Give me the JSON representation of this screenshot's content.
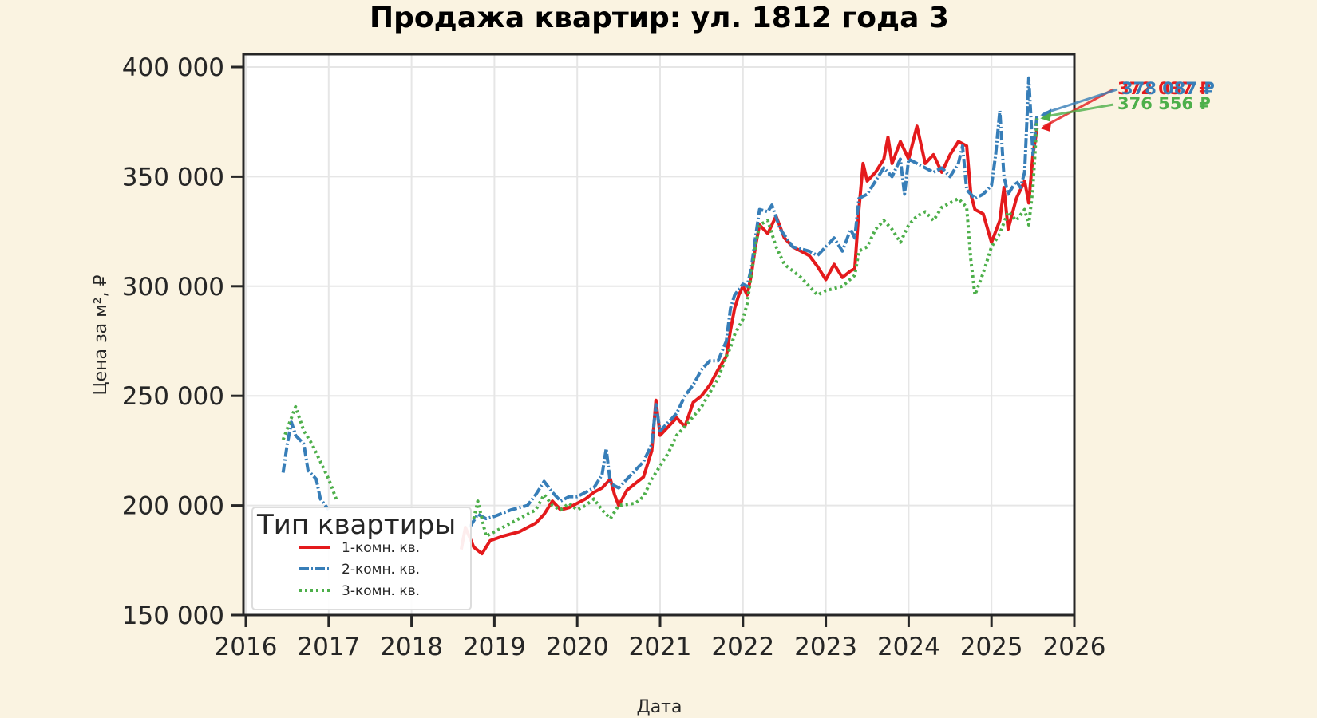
{
  "chart_data": {
    "type": "line",
    "title": "Продажа квартир: ул. 1812 года 3",
    "xlabel": "Дата",
    "ylabel": "Цена за м², ₽",
    "xlim": [
      2016,
      2026
    ],
    "ylim": [
      150000,
      400000
    ],
    "x_ticks": [
      "2016",
      "2017",
      "2018",
      "2019",
      "2020",
      "2021",
      "2022",
      "2023",
      "2024",
      "2025",
      "2026"
    ],
    "y_ticks": [
      "150 000",
      "200 000",
      "250 000",
      "300 000",
      "350 000",
      "400 000"
    ],
    "grid": true,
    "legend": {
      "title": "Тип квартиры",
      "position": "lower left"
    },
    "series": [
      {
        "name": "1-комн. кв.",
        "color": "#e41a1c",
        "style": "solid",
        "end_label": "372 037 ₽",
        "points": [
          [
            2018.6,
            180000
          ],
          [
            2018.65,
            190000
          ],
          [
            2018.75,
            181000
          ],
          [
            2018.85,
            178000
          ],
          [
            2018.95,
            184000
          ],
          [
            2019.1,
            186000
          ],
          [
            2019.3,
            188000
          ],
          [
            2019.4,
            190000
          ],
          [
            2019.5,
            192000
          ],
          [
            2019.6,
            196000
          ],
          [
            2019.7,
            202000
          ],
          [
            2019.8,
            198000
          ],
          [
            2019.9,
            199000
          ],
          [
            2020.0,
            201000
          ],
          [
            2020.1,
            203000
          ],
          [
            2020.2,
            206000
          ],
          [
            2020.3,
            208000
          ],
          [
            2020.4,
            212000
          ],
          [
            2020.45,
            205000
          ],
          [
            2020.5,
            200000
          ],
          [
            2020.6,
            207000
          ],
          [
            2020.7,
            210000
          ],
          [
            2020.8,
            213000
          ],
          [
            2020.9,
            225000
          ],
          [
            2020.95,
            248000
          ],
          [
            2021.0,
            232000
          ],
          [
            2021.1,
            236000
          ],
          [
            2021.2,
            240000
          ],
          [
            2021.3,
            236000
          ],
          [
            2021.4,
            247000
          ],
          [
            2021.5,
            250000
          ],
          [
            2021.6,
            255000
          ],
          [
            2021.7,
            262000
          ],
          [
            2021.8,
            268000
          ],
          [
            2021.85,
            280000
          ],
          [
            2021.9,
            290000
          ],
          [
            2021.95,
            296000
          ],
          [
            2022.0,
            300000
          ],
          [
            2022.05,
            296000
          ],
          [
            2022.1,
            305000
          ],
          [
            2022.15,
            318000
          ],
          [
            2022.2,
            328000
          ],
          [
            2022.3,
            324000
          ],
          [
            2022.4,
            332000
          ],
          [
            2022.5,
            322000
          ],
          [
            2022.6,
            318000
          ],
          [
            2022.7,
            316000
          ],
          [
            2022.8,
            314000
          ],
          [
            2022.9,
            309000
          ],
          [
            2023.0,
            303000
          ],
          [
            2023.1,
            310000
          ],
          [
            2023.2,
            304000
          ],
          [
            2023.3,
            307000
          ],
          [
            2023.35,
            308000
          ],
          [
            2023.4,
            335000
          ],
          [
            2023.45,
            356000
          ],
          [
            2023.5,
            348000
          ],
          [
            2023.6,
            352000
          ],
          [
            2023.7,
            358000
          ],
          [
            2023.75,
            368000
          ],
          [
            2023.8,
            356000
          ],
          [
            2023.9,
            366000
          ],
          [
            2024.0,
            358000
          ],
          [
            2024.1,
            373000
          ],
          [
            2024.2,
            356000
          ],
          [
            2024.3,
            360000
          ],
          [
            2024.4,
            352000
          ],
          [
            2024.5,
            360000
          ],
          [
            2024.6,
            366000
          ],
          [
            2024.7,
            364000
          ],
          [
            2024.75,
            342000
          ],
          [
            2024.8,
            335000
          ],
          [
            2024.9,
            333000
          ],
          [
            2025.0,
            320000
          ],
          [
            2025.1,
            330000
          ],
          [
            2025.15,
            345000
          ],
          [
            2025.2,
            326000
          ],
          [
            2025.3,
            340000
          ],
          [
            2025.4,
            348000
          ],
          [
            2025.45,
            338000
          ],
          [
            2025.5,
            360000
          ],
          [
            2025.55,
            372037
          ]
        ]
      },
      {
        "name": "2-комн. кв.",
        "color": "#377eb8",
        "style": "dashdot",
        "end_label": "378 087 ₽",
        "points": [
          [
            2016.45,
            215000
          ],
          [
            2016.5,
            228000
          ],
          [
            2016.55,
            238000
          ],
          [
            2016.6,
            232000
          ],
          [
            2016.7,
            228000
          ],
          [
            2016.75,
            216000
          ],
          [
            2016.85,
            212000
          ],
          [
            2016.9,
            203000
          ],
          [
            2017.0,
            198000
          ],
          [
            2018.7,
            190000
          ],
          [
            2018.8,
            196000
          ],
          [
            2018.9,
            194000
          ],
          [
            2019.0,
            195000
          ],
          [
            2019.2,
            198000
          ],
          [
            2019.4,
            200000
          ],
          [
            2019.5,
            205000
          ],
          [
            2019.6,
            211000
          ],
          [
            2019.7,
            206000
          ],
          [
            2019.8,
            202000
          ],
          [
            2019.9,
            204000
          ],
          [
            2020.0,
            204000
          ],
          [
            2020.1,
            206000
          ],
          [
            2020.2,
            208000
          ],
          [
            2020.3,
            214000
          ],
          [
            2020.35,
            226000
          ],
          [
            2020.4,
            210000
          ],
          [
            2020.5,
            208000
          ],
          [
            2020.6,
            212000
          ],
          [
            2020.7,
            216000
          ],
          [
            2020.8,
            220000
          ],
          [
            2020.9,
            228000
          ],
          [
            2020.95,
            246000
          ],
          [
            2021.0,
            234000
          ],
          [
            2021.1,
            238000
          ],
          [
            2021.2,
            242000
          ],
          [
            2021.3,
            250000
          ],
          [
            2021.4,
            255000
          ],
          [
            2021.5,
            262000
          ],
          [
            2021.6,
            266000
          ],
          [
            2021.7,
            266000
          ],
          [
            2021.8,
            275000
          ],
          [
            2021.85,
            290000
          ],
          [
            2021.9,
            296000
          ],
          [
            2022.0,
            301000
          ],
          [
            2022.05,
            300000
          ],
          [
            2022.1,
            308000
          ],
          [
            2022.15,
            322000
          ],
          [
            2022.2,
            335000
          ],
          [
            2022.3,
            334000
          ],
          [
            2022.35,
            337000
          ],
          [
            2022.45,
            326000
          ],
          [
            2022.6,
            318000
          ],
          [
            2022.8,
            316000
          ],
          [
            2022.9,
            314000
          ],
          [
            2023.0,
            318000
          ],
          [
            2023.1,
            322000
          ],
          [
            2023.2,
            316000
          ],
          [
            2023.3,
            326000
          ],
          [
            2023.35,
            322000
          ],
          [
            2023.4,
            340000
          ],
          [
            2023.5,
            342000
          ],
          [
            2023.6,
            348000
          ],
          [
            2023.7,
            354000
          ],
          [
            2023.8,
            350000
          ],
          [
            2023.9,
            358000
          ],
          [
            2023.95,
            342000
          ],
          [
            2024.0,
            358000
          ],
          [
            2024.1,
            356000
          ],
          [
            2024.2,
            354000
          ],
          [
            2024.3,
            352000
          ],
          [
            2024.4,
            354000
          ],
          [
            2024.5,
            350000
          ],
          [
            2024.6,
            356000
          ],
          [
            2024.65,
            364000
          ],
          [
            2024.7,
            344000
          ],
          [
            2024.8,
            340000
          ],
          [
            2024.9,
            342000
          ],
          [
            2025.0,
            346000
          ],
          [
            2025.05,
            360000
          ],
          [
            2025.1,
            380000
          ],
          [
            2025.15,
            350000
          ],
          [
            2025.2,
            342000
          ],
          [
            2025.3,
            348000
          ],
          [
            2025.35,
            345000
          ],
          [
            2025.4,
            352000
          ],
          [
            2025.45,
            395000
          ],
          [
            2025.5,
            360000
          ],
          [
            2025.55,
            378087
          ]
        ]
      },
      {
        "name": "3-комн. кв.",
        "color": "#4daf4a",
        "style": "dotted",
        "end_label": "376 556 ₽",
        "points": [
          [
            2016.45,
            230000
          ],
          [
            2016.55,
            240000
          ],
          [
            2016.6,
            245000
          ],
          [
            2016.7,
            234000
          ],
          [
            2016.8,
            228000
          ],
          [
            2016.9,
            220000
          ],
          [
            2017.0,
            212000
          ],
          [
            2017.1,
            202000
          ],
          [
            2018.75,
            194000
          ],
          [
            2018.8,
            202000
          ],
          [
            2018.9,
            186000
          ],
          [
            2019.0,
            188000
          ],
          [
            2019.2,
            192000
          ],
          [
            2019.4,
            196000
          ],
          [
            2019.5,
            198000
          ],
          [
            2019.6,
            205000
          ],
          [
            2019.7,
            200000
          ],
          [
            2019.8,
            198000
          ],
          [
            2019.9,
            201000
          ],
          [
            2020.0,
            198000
          ],
          [
            2020.1,
            200000
          ],
          [
            2020.2,
            203000
          ],
          [
            2020.3,
            198000
          ],
          [
            2020.4,
            194000
          ],
          [
            2020.5,
            200000
          ],
          [
            2020.7,
            201000
          ],
          [
            2020.8,
            204000
          ],
          [
            2020.9,
            212000
          ],
          [
            2021.0,
            218000
          ],
          [
            2021.1,
            224000
          ],
          [
            2021.2,
            232000
          ],
          [
            2021.3,
            236000
          ],
          [
            2021.5,
            245000
          ],
          [
            2021.7,
            258000
          ],
          [
            2021.8,
            268000
          ],
          [
            2021.85,
            272000
          ],
          [
            2021.9,
            278000
          ],
          [
            2022.0,
            285000
          ],
          [
            2022.05,
            292000
          ],
          [
            2022.1,
            305000
          ],
          [
            2022.15,
            318000
          ],
          [
            2022.2,
            328000
          ],
          [
            2022.3,
            330000
          ],
          [
            2022.4,
            318000
          ],
          [
            2022.5,
            310000
          ],
          [
            2022.7,
            304000
          ],
          [
            2022.8,
            300000
          ],
          [
            2022.9,
            296000
          ],
          [
            2023.0,
            298000
          ],
          [
            2023.2,
            300000
          ],
          [
            2023.35,
            305000
          ],
          [
            2023.4,
            316000
          ],
          [
            2023.5,
            318000
          ],
          [
            2023.6,
            326000
          ],
          [
            2023.7,
            330000
          ],
          [
            2023.8,
            326000
          ],
          [
            2023.9,
            320000
          ],
          [
            2024.0,
            328000
          ],
          [
            2024.1,
            332000
          ],
          [
            2024.2,
            334000
          ],
          [
            2024.3,
            330000
          ],
          [
            2024.4,
            336000
          ],
          [
            2024.5,
            338000
          ],
          [
            2024.6,
            340000
          ],
          [
            2024.7,
            336000
          ],
          [
            2024.75,
            312000
          ],
          [
            2024.8,
            296000
          ],
          [
            2024.9,
            306000
          ],
          [
            2025.0,
            318000
          ],
          [
            2025.1,
            324000
          ],
          [
            2025.2,
            334000
          ],
          [
            2025.3,
            330000
          ],
          [
            2025.4,
            335000
          ],
          [
            2025.45,
            328000
          ],
          [
            2025.5,
            345000
          ],
          [
            2025.55,
            376556
          ]
        ]
      }
    ]
  }
}
